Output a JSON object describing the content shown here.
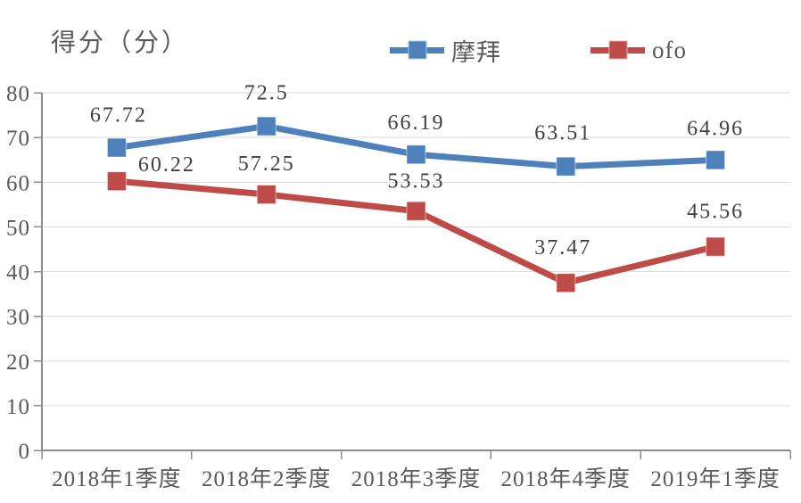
{
  "chart": {
    "y_axis_title": "得分（分）"
  },
  "legend": {
    "items": [
      {
        "label": "摩拜",
        "color": "#4E80BC"
      },
      {
        "label": "ofo",
        "color": "#BE4B48"
      }
    ]
  },
  "colors": {
    "series_mobike": "#4E80BC",
    "series_ofo": "#BE4B48",
    "axis_line": "#8C8C8C",
    "gridline": "#DCDCDC",
    "tick_text": "#595959",
    "data_label_text": "#404040",
    "background": "#FFFFFF"
  },
  "chart_data": {
    "type": "line",
    "title": "",
    "ylabel": "得分（分）",
    "xlabel": "",
    "categories": [
      "2018年1季度",
      "2018年2季度",
      "2018年3季度",
      "2018年4季度",
      "2019年1季度"
    ],
    "series": [
      {
        "name": "摩拜",
        "color": "#4E80BC",
        "values": [
          67.72,
          72.5,
          66.19,
          63.51,
          64.96
        ],
        "label_offsets": [
          [
            2,
            -37
          ],
          [
            0,
            -38
          ],
          [
            0,
            -36
          ],
          [
            -3,
            -38
          ],
          [
            0,
            -36
          ]
        ]
      },
      {
        "name": "ofo",
        "color": "#BE4B48",
        "values": [
          60.22,
          57.25,
          53.53,
          37.47,
          45.56
        ],
        "label_offsets": [
          [
            56,
            -19
          ],
          [
            0,
            -35
          ],
          [
            0,
            -34
          ],
          [
            -3,
            -40
          ],
          [
            0,
            -40
          ]
        ]
      }
    ],
    "ylim": [
      0,
      80
    ],
    "ytick_step": 10,
    "yticks": [
      0,
      10,
      20,
      30,
      40,
      50,
      60,
      70,
      80
    ],
    "grid": true,
    "legend_position": "top",
    "marker": "square",
    "data_labels": true
  }
}
